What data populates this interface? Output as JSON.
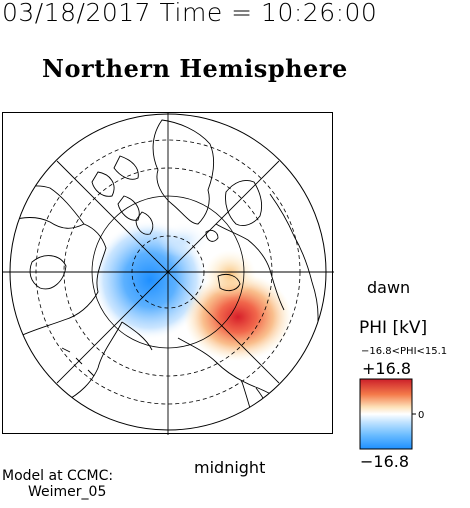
{
  "header": {
    "datetime": "03/18/2017 Time = 10:26:00",
    "title": "Northern Hemisphere"
  },
  "map": {
    "bottom_label": "midnight",
    "right_label": "dawn"
  },
  "colorbar": {
    "title": "PHI [kV]",
    "range_text": "−16.8<PHI<15.1",
    "max_label": "+16.8",
    "min_label": "−16.8",
    "mid_tick_label": "0",
    "colors": {
      "max": "#cc1f2a",
      "mid": "#ffffff",
      "min": "#1e90ff"
    }
  },
  "potential": {
    "min_kV": -16.8,
    "max_kV": 15.1
  },
  "footer": {
    "line1": "Model at CCMC:",
    "line2": "Weimer_05"
  }
}
